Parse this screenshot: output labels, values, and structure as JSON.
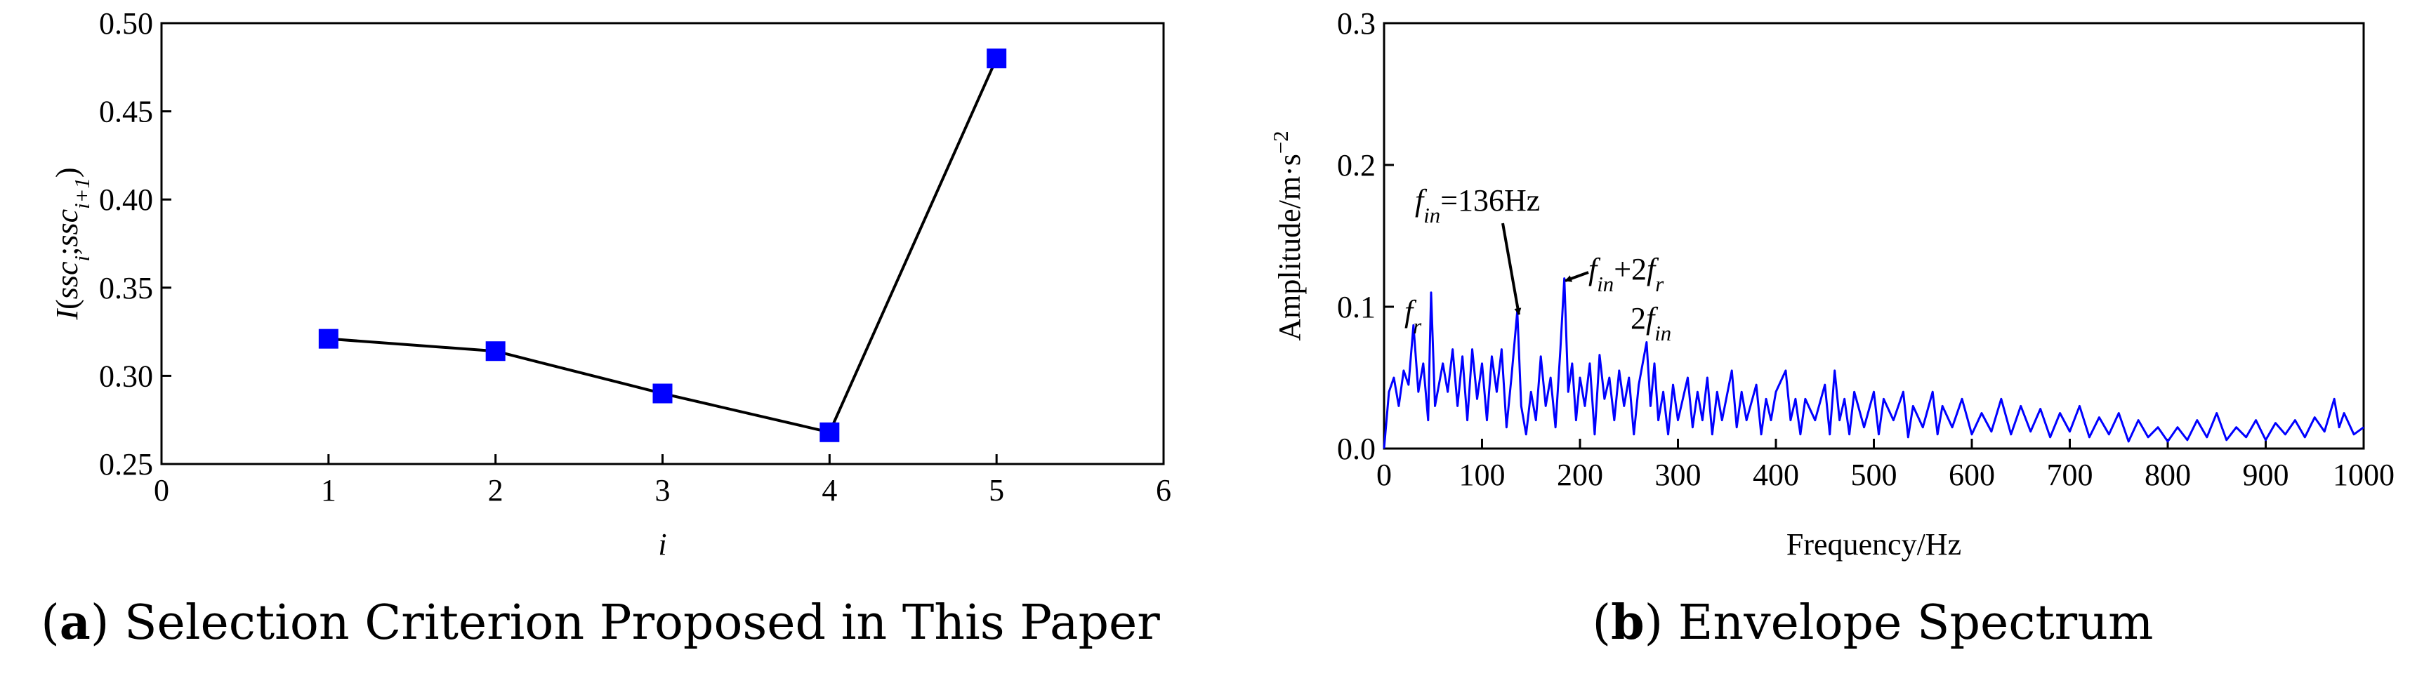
{
  "chart_data": [
    {
      "type": "line",
      "caption": [
        {
          "text": "(",
          "style": "normal"
        },
        {
          "text": "a",
          "style": "bold"
        },
        {
          "text": ") Selection Criterion Proposed in This Paper",
          "style": "normal"
        }
      ],
      "x_label": [
        {
          "text": "i",
          "style": "italic"
        }
      ],
      "y_label": [
        {
          "text": "I",
          "style": "italic"
        },
        {
          "text": "(",
          "style": "normal"
        },
        {
          "text": "ssc",
          "style": "italic"
        },
        {
          "text": "i",
          "style": "sub"
        },
        {
          "text": ";",
          "style": "normal"
        },
        {
          "text": "ssc",
          "style": "italic"
        },
        {
          "text": "i+1",
          "style": "sub"
        },
        {
          "text": ")",
          "style": "normal"
        }
      ],
      "series": [
        {
          "x": [
            1,
            2,
            3,
            4,
            5
          ],
          "values": [
            0.321,
            0.314,
            0.29,
            0.268,
            0.48
          ],
          "color": "#0000ff",
          "line_color": "#000000",
          "marker": "square"
        }
      ],
      "xlim": [
        0,
        6
      ],
      "xticks": [
        0,
        1,
        2,
        3,
        4,
        5,
        6
      ],
      "ylim": [
        0.25,
        0.5
      ],
      "yticks": [
        0.25,
        {
          "value": 0.3,
          "label": "0.30"
        },
        0.35,
        {
          "value": 0.4,
          "label": "0.40"
        },
        0.45,
        {
          "value": 0.5,
          "label": "0.50"
        }
      ]
    },
    {
      "type": "line",
      "caption": [
        {
          "text": "(",
          "style": "normal"
        },
        {
          "text": "b",
          "style": "bold"
        },
        {
          "text": ") Envelope Spectrum",
          "style": "normal"
        }
      ],
      "x_label": [
        {
          "text": "Frequency/Hz",
          "style": "normal"
        }
      ],
      "y_label": [
        {
          "text": "Amplitude/m·s",
          "style": "normal"
        },
        {
          "text": "−2",
          "style": "sup"
        }
      ],
      "annotations": [
        [
          {
            "text": "f",
            "style": "italic"
          },
          {
            "text": "in",
            "style": "sub"
          },
          {
            "text": "=136Hz",
            "style": "normal"
          }
        ],
        [
          {
            "text": "f",
            "style": "italic"
          },
          {
            "text": "in",
            "style": "sub"
          },
          {
            "text": "+2",
            "style": "normal"
          },
          {
            "text": "f",
            "style": "italic"
          },
          {
            "text": "r",
            "style": "sub"
          }
        ],
        [
          {
            "text": "2",
            "style": "normal"
          },
          {
            "text": "f",
            "style": "italic"
          },
          {
            "text": "in",
            "style": "sub"
          }
        ],
        [
          {
            "text": "f",
            "style": "italic"
          },
          {
            "text": "r",
            "style": "sub"
          }
        ]
      ],
      "series": [
        {
          "color": "#0000ff",
          "x": [
            0,
            5,
            10,
            15,
            20,
            25,
            30,
            35,
            40,
            45,
            48,
            52,
            60,
            65,
            70,
            75,
            80,
            85,
            90,
            95,
            100,
            105,
            110,
            115,
            120,
            125,
            130,
            136,
            140,
            145,
            150,
            155,
            160,
            165,
            170,
            175,
            180,
            184,
            188,
            192,
            196,
            200,
            205,
            210,
            215,
            220,
            225,
            230,
            235,
            240,
            245,
            250,
            255,
            260,
            268,
            272,
            276,
            280,
            285,
            290,
            295,
            300,
            310,
            315,
            320,
            325,
            330,
            335,
            340,
            345,
            355,
            360,
            365,
            370,
            380,
            385,
            390,
            395,
            400,
            410,
            415,
            420,
            425,
            430,
            440,
            450,
            455,
            460,
            465,
            470,
            475,
            480,
            490,
            500,
            505,
            510,
            520,
            530,
            535,
            540,
            550,
            560,
            565,
            570,
            580,
            590,
            600,
            610,
            620,
            630,
            640,
            650,
            660,
            670,
            680,
            690,
            700,
            710,
            720,
            730,
            740,
            750,
            760,
            770,
            780,
            790,
            800,
            810,
            820,
            830,
            840,
            850,
            860,
            870,
            880,
            890,
            900,
            910,
            920,
            930,
            940,
            950,
            960,
            970,
            975,
            980,
            990,
            1000
          ],
          "values": [
            0.0,
            0.04,
            0.05,
            0.03,
            0.055,
            0.045,
            0.087,
            0.04,
            0.06,
            0.02,
            0.11,
            0.03,
            0.06,
            0.04,
            0.07,
            0.03,
            0.065,
            0.02,
            0.07,
            0.035,
            0.06,
            0.02,
            0.065,
            0.04,
            0.07,
            0.015,
            0.05,
            0.097,
            0.03,
            0.01,
            0.04,
            0.02,
            0.065,
            0.03,
            0.05,
            0.015,
            0.07,
            0.12,
            0.04,
            0.06,
            0.02,
            0.05,
            0.03,
            0.06,
            0.01,
            0.066,
            0.035,
            0.05,
            0.02,
            0.055,
            0.03,
            0.05,
            0.01,
            0.045,
            0.075,
            0.03,
            0.06,
            0.02,
            0.04,
            0.01,
            0.045,
            0.02,
            0.05,
            0.015,
            0.04,
            0.02,
            0.05,
            0.01,
            0.04,
            0.02,
            0.055,
            0.015,
            0.04,
            0.02,
            0.045,
            0.01,
            0.035,
            0.02,
            0.04,
            0.055,
            0.02,
            0.035,
            0.01,
            0.035,
            0.02,
            0.045,
            0.01,
            0.055,
            0.02,
            0.035,
            0.01,
            0.04,
            0.015,
            0.04,
            0.01,
            0.035,
            0.02,
            0.04,
            0.008,
            0.03,
            0.015,
            0.04,
            0.01,
            0.03,
            0.015,
            0.035,
            0.01,
            0.025,
            0.012,
            0.035,
            0.01,
            0.03,
            0.012,
            0.028,
            0.008,
            0.025,
            0.012,
            0.03,
            0.008,
            0.022,
            0.01,
            0.025,
            0.005,
            0.02,
            0.008,
            0.015,
            0.005,
            0.015,
            0.006,
            0.02,
            0.008,
            0.025,
            0.006,
            0.015,
            0.008,
            0.02,
            0.006,
            0.018,
            0.01,
            0.02,
            0.008,
            0.022,
            0.012,
            0.035,
            0.015,
            0.025,
            0.01,
            0.015
          ]
        }
      ],
      "xlim": [
        0,
        1000
      ],
      "xticks": [
        0,
        100,
        200,
        300,
        400,
        500,
        600,
        700,
        800,
        900,
        1000
      ],
      "ylim": [
        0,
        0.3
      ],
      "yticks": [
        {
          "value": 0,
          "label": "0.0"
        },
        0.1,
        0.2,
        0.3
      ]
    }
  ]
}
